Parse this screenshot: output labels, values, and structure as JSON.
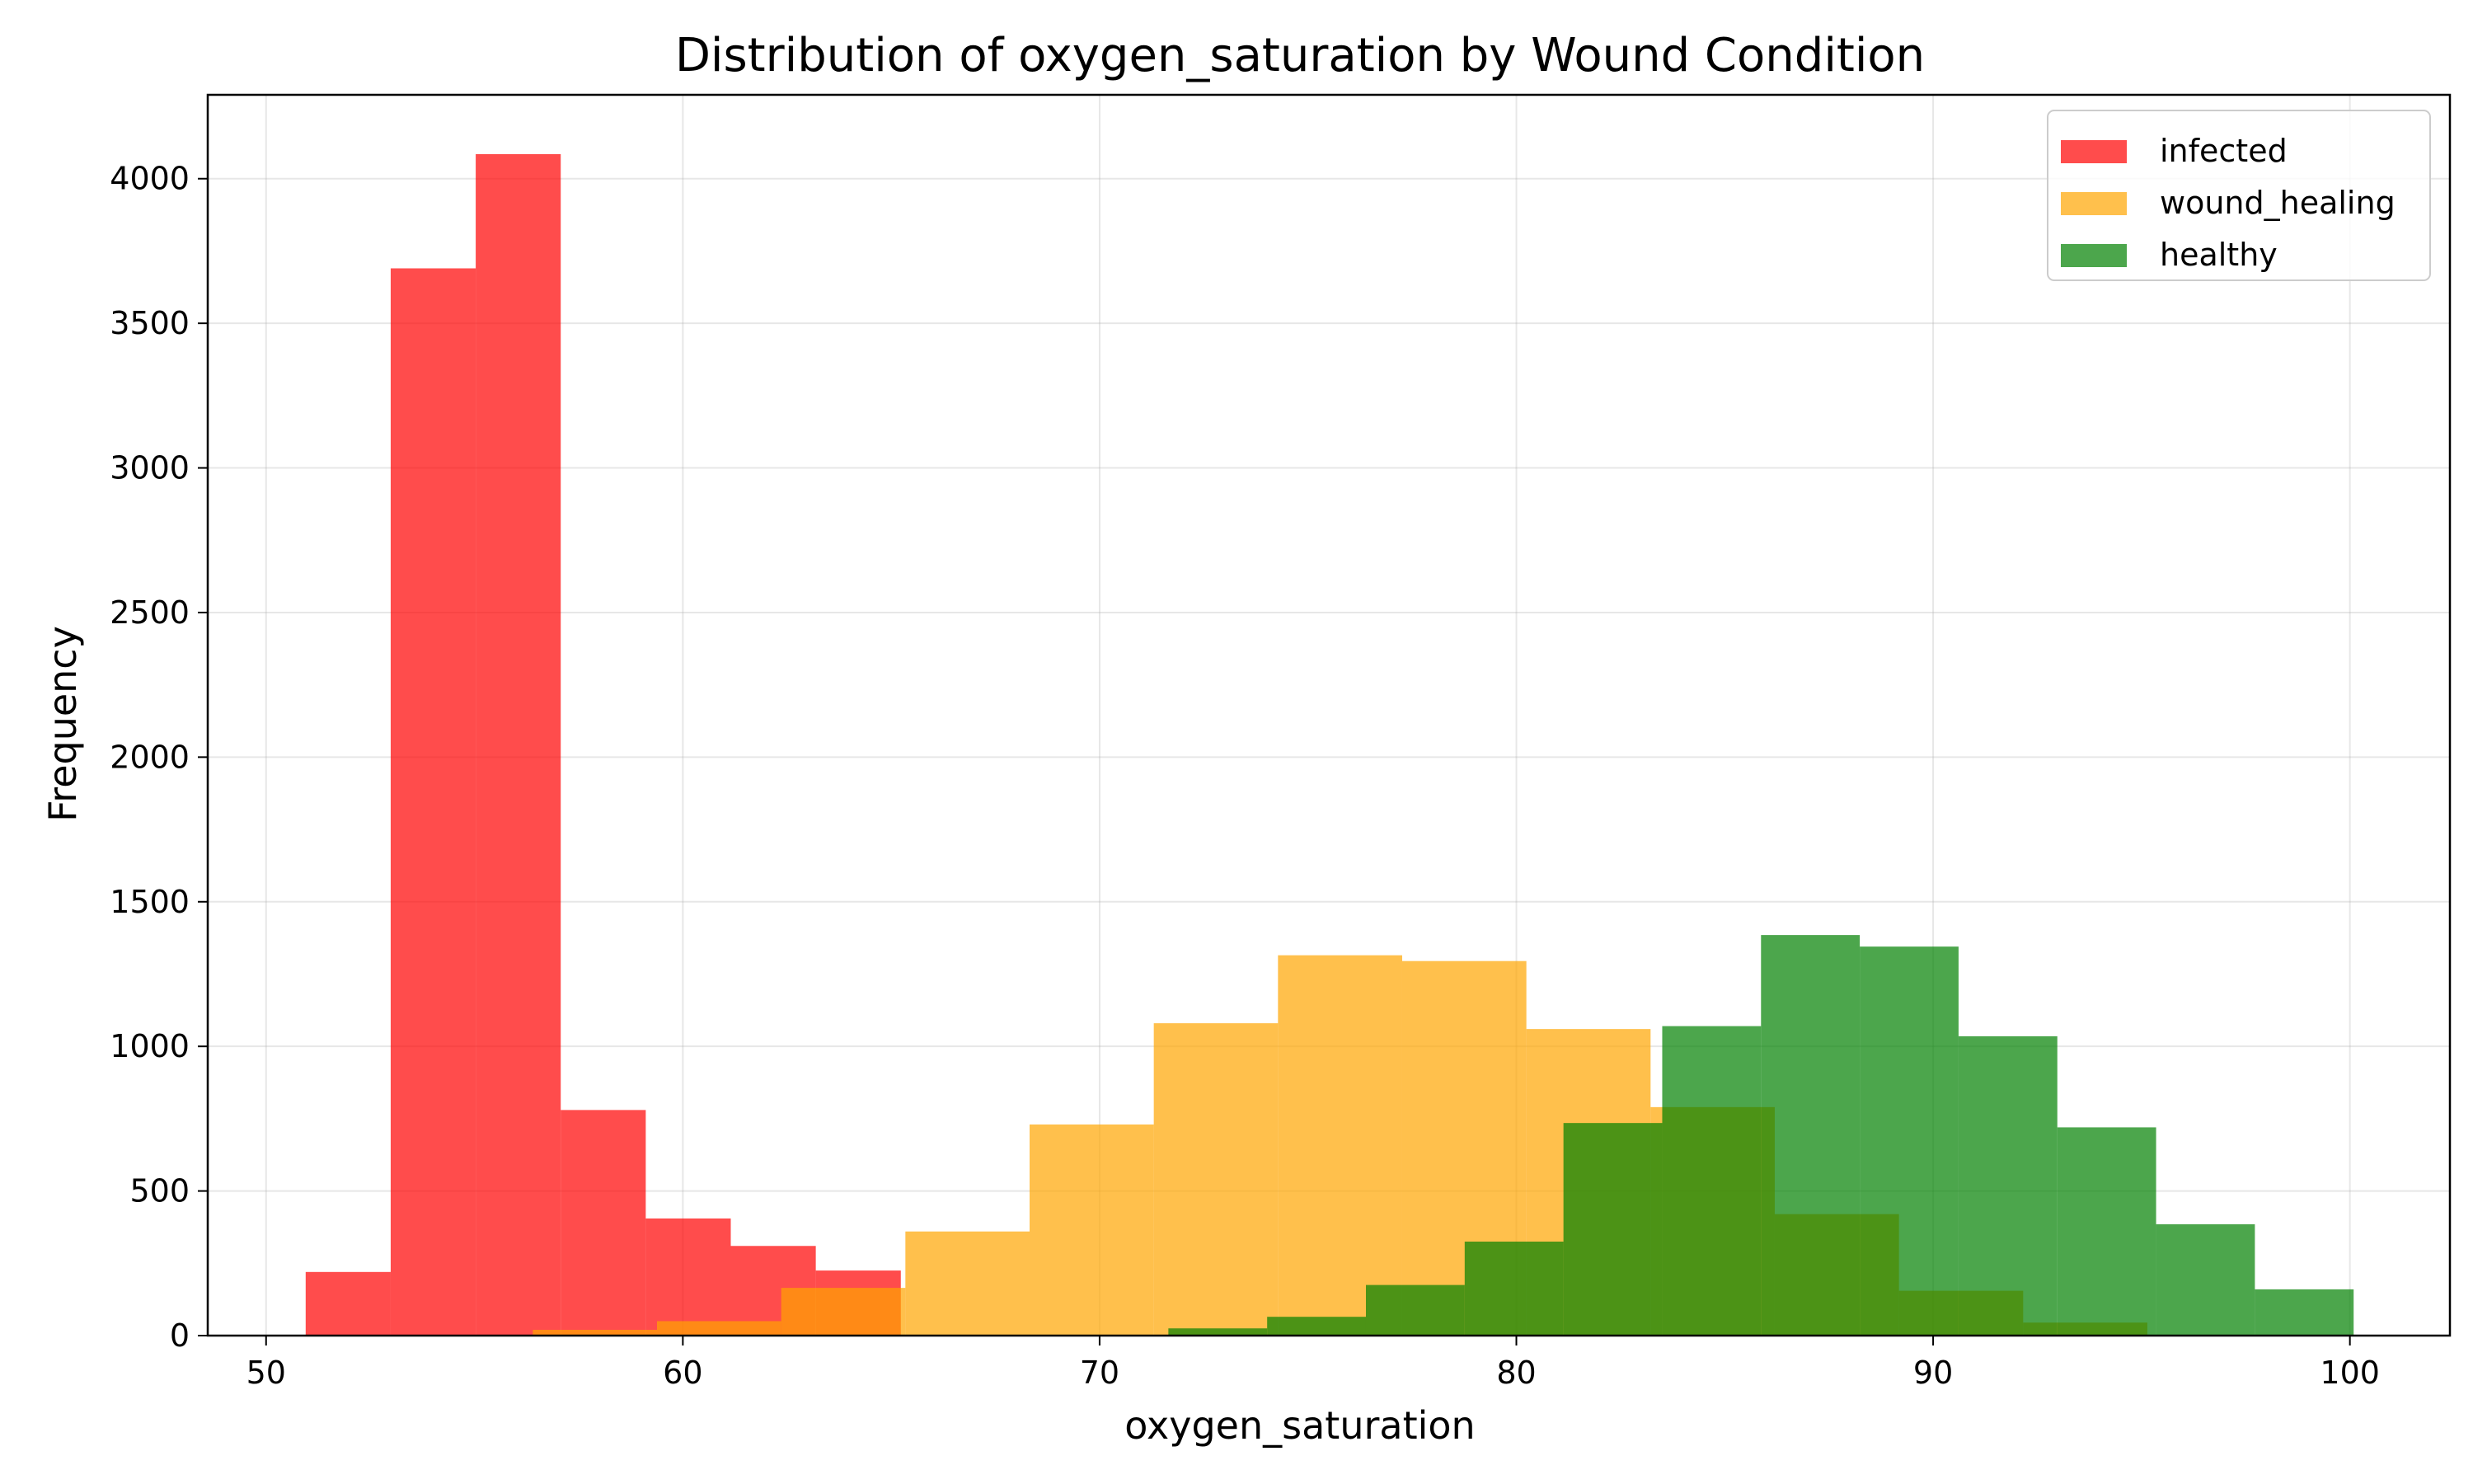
{
  "chart_data": {
    "type": "histogram",
    "title": "Distribution of oxygen_saturation by Wound Condition",
    "xlabel": "oxygen_saturation",
    "ylabel": "Frequency",
    "xlim": [
      48.6,
      102.4
    ],
    "ylim": [
      0,
      4290
    ],
    "xticks": [
      50,
      60,
      70,
      80,
      90,
      100
    ],
    "yticks": [
      0,
      500,
      1000,
      1500,
      2000,
      2500,
      3000,
      3500,
      4000
    ],
    "grid": true,
    "legend_position": "top-right",
    "series": [
      {
        "name": "infected",
        "color": "#ff0000",
        "opacity": 0.7,
        "bins": [
          {
            "x0": 50.95,
            "x1": 52.99,
            "count": 220
          },
          {
            "x0": 52.99,
            "x1": 55.03,
            "count": 3690
          },
          {
            "x0": 55.03,
            "x1": 57.07,
            "count": 4085
          },
          {
            "x0": 57.07,
            "x1": 59.11,
            "count": 780
          },
          {
            "x0": 59.11,
            "x1": 61.15,
            "count": 405
          },
          {
            "x0": 61.15,
            "x1": 63.19,
            "count": 310
          },
          {
            "x0": 63.19,
            "x1": 65.23,
            "count": 225
          }
        ]
      },
      {
        "name": "wound_healing",
        "color": "#ffa500",
        "opacity": 0.7,
        "bins": [
          {
            "x0": 56.4,
            "x1": 59.38,
            "count": 20
          },
          {
            "x0": 59.38,
            "x1": 62.36,
            "count": 50
          },
          {
            "x0": 62.36,
            "x1": 65.34,
            "count": 165
          },
          {
            "x0": 65.34,
            "x1": 68.32,
            "count": 360
          },
          {
            "x0": 68.32,
            "x1": 71.3,
            "count": 730
          },
          {
            "x0": 71.3,
            "x1": 74.28,
            "count": 1080
          },
          {
            "x0": 74.28,
            "x1": 77.26,
            "count": 1315
          },
          {
            "x0": 77.26,
            "x1": 80.24,
            "count": 1295
          },
          {
            "x0": 80.24,
            "x1": 83.22,
            "count": 1060
          },
          {
            "x0": 83.22,
            "x1": 86.2,
            "count": 790
          },
          {
            "x0": 86.2,
            "x1": 89.18,
            "count": 420
          },
          {
            "x0": 89.18,
            "x1": 92.16,
            "count": 155
          },
          {
            "x0": 92.16,
            "x1": 95.14,
            "count": 45
          }
        ]
      },
      {
        "name": "healthy",
        "color": "#008000",
        "opacity": 0.7,
        "bins": [
          {
            "x0": 71.65,
            "x1": 74.02,
            "count": 25
          },
          {
            "x0": 74.02,
            "x1": 76.39,
            "count": 65
          },
          {
            "x0": 76.39,
            "x1": 78.76,
            "count": 175
          },
          {
            "x0": 78.76,
            "x1": 81.13,
            "count": 325
          },
          {
            "x0": 81.13,
            "x1": 83.5,
            "count": 735
          },
          {
            "x0": 83.5,
            "x1": 85.87,
            "count": 1070
          },
          {
            "x0": 85.87,
            "x1": 88.24,
            "count": 1385
          },
          {
            "x0": 88.24,
            "x1": 90.61,
            "count": 1345
          },
          {
            "x0": 90.61,
            "x1": 92.98,
            "count": 1035
          },
          {
            "x0": 92.98,
            "x1": 95.35,
            "count": 720
          },
          {
            "x0": 95.35,
            "x1": 97.72,
            "count": 385
          },
          {
            "x0": 97.72,
            "x1": 100.09,
            "count": 160
          }
        ]
      }
    ]
  }
}
